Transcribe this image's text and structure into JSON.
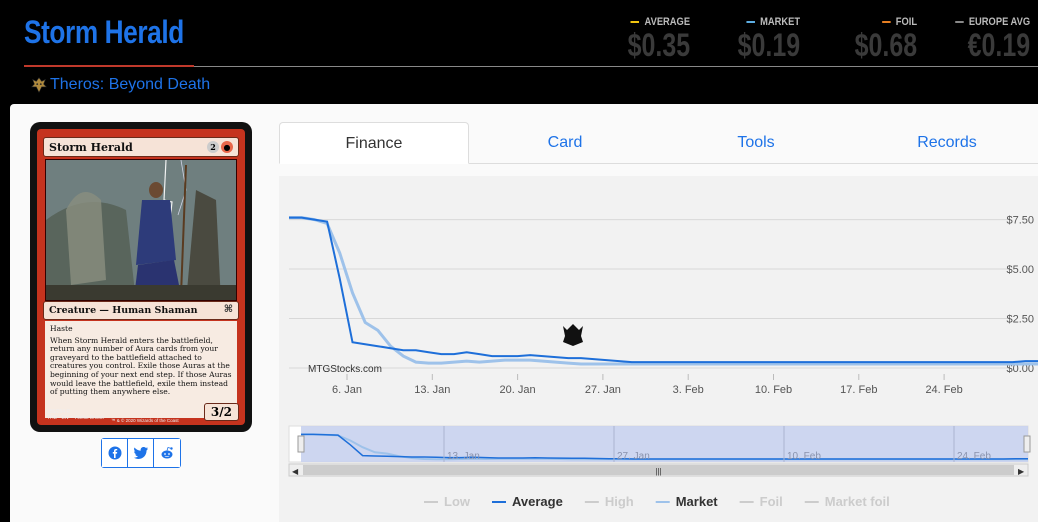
{
  "header": {
    "title": "Storm Herald",
    "set_name": "Theros: Beyond Death",
    "set_icon": "theros-set-icon"
  },
  "prices": [
    {
      "label": "AVERAGE",
      "value": "$0.35",
      "color": "#f1c40f"
    },
    {
      "label": "MARKET",
      "value": "$0.19",
      "color": "#5dade2"
    },
    {
      "label": "FOIL",
      "value": "$0.68",
      "color": "#e67e22"
    },
    {
      "label": "EUROPE AVG",
      "value": "€0.19",
      "color": "#888888"
    }
  ],
  "card": {
    "name": "Storm Herald",
    "mana": [
      "2",
      "R"
    ],
    "type_line": "Creature — Human Shaman",
    "text_keyword": "Haste",
    "text_body": "When Storm Herald enters the battlefield, return any number of Aura cards from your graveyard to the battlefield attached to creatures you control. Exile those Auras at the beginning of your next end step. If those Auras would leave the battlefield, exile them instead of putting them anywhere else.",
    "pt": "3/2",
    "footer_line1": "156/254 R",
    "footer_line2": "THB • EN ✒ Aleksi Briclot",
    "footer_line3": "™ & © 2020 Wizards of the Coast"
  },
  "share": [
    "facebook-icon",
    "twitter-icon",
    "reddit-icon"
  ],
  "tabs": [
    {
      "label": "Finance",
      "active": true
    },
    {
      "label": "Card",
      "active": false
    },
    {
      "label": "Tools",
      "active": false
    },
    {
      "label": "Records",
      "active": false
    }
  ],
  "chart_data": {
    "type": "line",
    "watermark": "MTGStocks.com",
    "y_ticks": [
      "$7.50",
      "$5.00",
      "$2.50",
      "$0.00"
    ],
    "ylim": [
      0,
      9.5
    ],
    "x_ticks": [
      "6. Jan",
      "13. Jan",
      "20. Jan",
      "27. Jan",
      "3. Feb",
      "10. Feb",
      "17. Feb",
      "24. Feb"
    ],
    "navigator_ticks": [
      "13. Jan",
      "27. Jan",
      "10. Feb",
      "24. Feb"
    ],
    "series": [
      {
        "name": "Average",
        "color": "#1e6fd9",
        "values": [
          7.6,
          7.6,
          7.5,
          7.4,
          4.5,
          1.3,
          1.2,
          1.1,
          1.0,
          0.9,
          0.9,
          0.8,
          0.7,
          0.7,
          0.8,
          0.7,
          0.6,
          0.6,
          0.6,
          0.65,
          0.6,
          0.55,
          0.5,
          0.5,
          0.45,
          0.4,
          0.35,
          0.3,
          0.3,
          0.3,
          0.3,
          0.3,
          0.3,
          0.3,
          0.3,
          0.3,
          0.3,
          0.3,
          0.3,
          0.3,
          0.3,
          0.3,
          0.3,
          0.3,
          0.3,
          0.3,
          0.3,
          0.3,
          0.3,
          0.3,
          0.3,
          0.3,
          0.3,
          0.3,
          0.3,
          0.3,
          0.3,
          0.3,
          0.35,
          0.35
        ]
      },
      {
        "name": "Market",
        "color": "#9ec2ea",
        "values": [
          7.6,
          7.6,
          7.5,
          7.3,
          5.8,
          3.8,
          2.3,
          1.9,
          1.1,
          0.6,
          0.3,
          0.25,
          0.25,
          0.3,
          0.35,
          0.3,
          0.35,
          0.4,
          0.4,
          0.4,
          0.35,
          0.3,
          0.25,
          0.2,
          0.2,
          0.2,
          0.2,
          0.2,
          0.2,
          0.2,
          0.2,
          0.2,
          0.2,
          0.2,
          0.2,
          0.2,
          0.2,
          0.2,
          0.2,
          0.2,
          0.2,
          0.2,
          0.2,
          0.2,
          0.2,
          0.2,
          0.2,
          0.2,
          0.2,
          0.2,
          0.2,
          0.2,
          0.2,
          0.2,
          0.2,
          0.2,
          0.2,
          0.2,
          0.2,
          0.2
        ]
      }
    ],
    "legend": [
      {
        "label": "Low",
        "color": "#cccccc",
        "active": false
      },
      {
        "label": "Average",
        "color": "#1e6fd9",
        "active": true
      },
      {
        "label": "High",
        "color": "#cccccc",
        "active": false
      },
      {
        "label": "Market",
        "color": "#9ec2ea",
        "active": true
      },
      {
        "label": "Foil",
        "color": "#cccccc",
        "active": false
      },
      {
        "label": "Market foil",
        "color": "#cccccc",
        "active": false
      }
    ],
    "legend_placement": "bottom"
  }
}
